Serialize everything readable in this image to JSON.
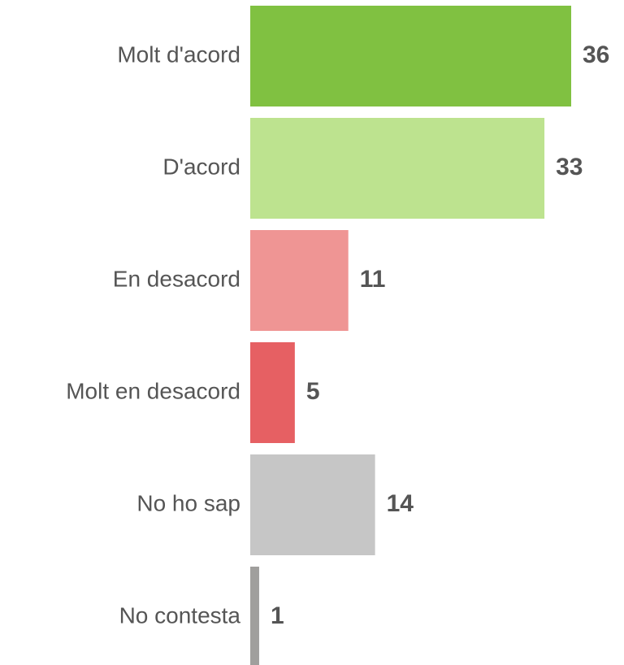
{
  "chart_data": {
    "type": "bar",
    "orientation": "horizontal",
    "categories": [
      "Molt d'acord",
      "D'acord",
      "En desacord",
      "Molt en desacord",
      "No ho sap",
      "No contesta"
    ],
    "values": [
      36,
      33,
      11,
      5,
      14,
      1
    ],
    "colors": [
      "#80c141",
      "#bde38f",
      "#ef9594",
      "#e66063",
      "#c6c6c6",
      "#a09f9d"
    ]
  }
}
